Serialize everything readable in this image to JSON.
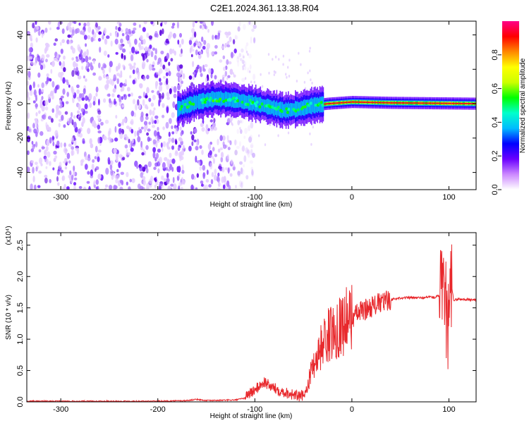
{
  "title": "C2E1.2024.361.13.38.R04",
  "chart_data": [
    {
      "type": "heatmap",
      "xlabel": "Height of straight line (km)",
      "ylabel": "Frequency (Hz)",
      "xlim": [
        -335,
        128
      ],
      "ylim": [
        -50,
        48
      ],
      "xticks": [
        -300,
        -200,
        -100,
        0,
        100
      ],
      "yticks": [
        -40,
        -20,
        0,
        20,
        40
      ],
      "xtick_labels": [
        "-300",
        "-200",
        "-100",
        "0",
        "100"
      ],
      "ytick_labels": [
        "-40",
        "-20",
        "0",
        "20",
        "40"
      ],
      "colorbar": {
        "label": "Normalized spectral amplitude",
        "range": [
          0,
          1
        ],
        "ticks": [
          0.0,
          0.2,
          0.4,
          0.6,
          0.8
        ],
        "tick_labels": [
          "0.0",
          "0.2",
          "0.4",
          "0.6",
          "0.8"
        ],
        "colors": [
          "#ffffff",
          "#cc88ff",
          "#6a00ff",
          "#0000ff",
          "#00bbff",
          "#00ffcc",
          "#00ff00",
          "#ccff00",
          "#ffff00",
          "#ff8800",
          "#ff0000",
          "#ff0088"
        ]
      },
      "noise_region_x": [
        -335,
        -120
      ],
      "gap_x": -170,
      "signal_center_path": [
        {
          "x": -180,
          "y": -3
        },
        {
          "x": -160,
          "y": 1
        },
        {
          "x": -140,
          "y": 3
        },
        {
          "x": -120,
          "y": 2
        },
        {
          "x": -100,
          "y": 0
        },
        {
          "x": -85,
          "y": -2
        },
        {
          "x": -70,
          "y": -4
        },
        {
          "x": -55,
          "y": -3
        },
        {
          "x": -40,
          "y": -1
        },
        {
          "x": -25,
          "y": 0
        },
        {
          "x": 0,
          "y": 1
        },
        {
          "x": 40,
          "y": 0.5
        },
        {
          "x": 128,
          "y": 0
        }
      ]
    },
    {
      "type": "line",
      "xlabel": "Height of straight line (km)",
      "ylabel": "SNR (10 * v/v)",
      "multiplier_label": "(x10⁴)",
      "xlim": [
        -335,
        128
      ],
      "ylim": [
        0,
        2.7
      ],
      "xticks": [
        -300,
        -200,
        -100,
        0,
        100
      ],
      "yticks": [
        0.0,
        0.5,
        1.0,
        1.5,
        2.0,
        2.5
      ],
      "xtick_labels": [
        "-300",
        "-200",
        "-100",
        "0",
        "100"
      ],
      "ytick_labels": [
        "0.0",
        "0.5",
        "1.0",
        "1.5",
        "2.0",
        "2.5"
      ],
      "series": [
        {
          "color": "#e8282c",
          "x": [
            -335,
            -300,
            -250,
            -200,
            -170,
            -160,
            -150,
            -120,
            -110,
            -100,
            -95,
            -90,
            -85,
            -80,
            -75,
            -70,
            -65,
            -60,
            -55,
            -50,
            -45,
            -40,
            -35,
            -30,
            -25,
            -20,
            -15,
            -10,
            -5,
            0,
            5,
            10,
            20,
            30,
            40,
            50,
            60,
            70,
            75,
            80,
            85,
            90,
            95,
            98,
            100,
            102,
            105,
            110,
            120,
            128
          ],
          "y": [
            0.01,
            0.01,
            0.01,
            0.01,
            0.02,
            0.04,
            0.02,
            0.03,
            0.06,
            0.15,
            0.22,
            0.28,
            0.22,
            0.18,
            0.15,
            0.12,
            0.1,
            0.08,
            0.05,
            0.06,
            0.3,
            0.6,
            0.75,
            0.95,
            1.05,
            1.1,
            1.2,
            1.25,
            1.3,
            1.35,
            1.4,
            1.45,
            1.52,
            1.58,
            1.63,
            1.66,
            1.66,
            1.66,
            1.66,
            1.68,
            1.66,
            1.7,
            1.6,
            1.4,
            1.0,
            1.9,
            1.62,
            1.64,
            1.63,
            1.63
          ]
        }
      ]
    }
  ]
}
